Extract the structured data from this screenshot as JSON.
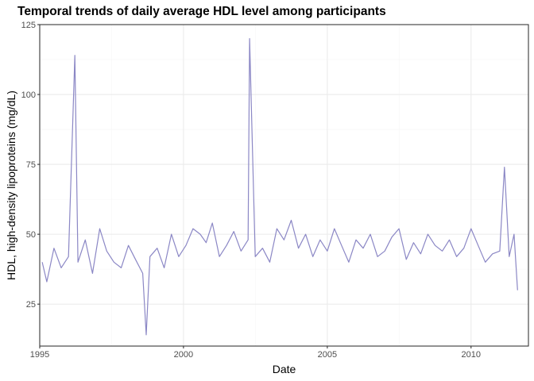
{
  "chart_data": {
    "type": "line",
    "title": "Temporal trends of daily average HDL level among participants",
    "xlabel": "Date",
    "ylabel": "HDL, high-density lipoproteins (mg/dL)",
    "xlim": [
      "1995-01-01",
      "2011-12-31"
    ],
    "ylim": [
      10,
      125
    ],
    "x_ticks": [
      "1995",
      "2000",
      "2005",
      "2010"
    ],
    "y_ticks": [
      "25",
      "50",
      "75",
      "100",
      "125"
    ],
    "grid": true,
    "series_color": "#8b87c5",
    "series": [
      {
        "x": [
          "1995-02-01",
          "1995-04-01",
          "1995-07-01",
          "1995-10-01",
          "1996-01-01",
          "1996-03-22",
          "1996-05-01",
          "1996-08-01",
          "1996-11-01",
          "1997-02-01",
          "1997-05-01",
          "1997-08-01",
          "1997-11-01",
          "1998-02-01",
          "1998-05-01",
          "1998-08-01",
          "1998-09-15",
          "1998-11-01",
          "1999-02-01",
          "1999-05-01",
          "1999-08-01",
          "1999-11-01",
          "2000-02-01",
          "2000-05-01",
          "2000-08-01",
          "2000-10-15",
          "2001-01-01",
          "2001-04-01",
          "2001-07-01",
          "2001-10-01",
          "2002-01-01",
          "2002-04-01",
          "2002-04-20",
          "2002-07-01",
          "2002-10-01",
          "2003-01-01",
          "2003-04-01",
          "2003-07-01",
          "2003-10-01",
          "2004-01-01",
          "2004-04-01",
          "2004-07-01",
          "2004-10-01",
          "2005-01-01",
          "2005-04-01",
          "2005-07-01",
          "2005-10-01",
          "2006-01-01",
          "2006-04-01",
          "2006-07-01",
          "2006-10-01",
          "2007-01-01",
          "2007-04-01",
          "2007-07-01",
          "2007-10-01",
          "2008-01-01",
          "2008-04-01",
          "2008-07-01",
          "2008-10-01",
          "2009-01-01",
          "2009-04-01",
          "2009-07-01",
          "2009-10-01",
          "2010-01-01",
          "2010-04-01",
          "2010-07-01",
          "2010-10-01",
          "2011-01-01",
          "2011-03-01",
          "2011-05-01",
          "2011-07-01",
          "2011-08-15"
        ],
        "y": [
          40,
          33,
          45,
          38,
          42,
          114,
          40,
          48,
          36,
          52,
          44,
          40,
          38,
          46,
          41,
          36,
          14,
          42,
          45,
          38,
          50,
          42,
          46,
          52,
          50,
          47,
          54,
          42,
          46,
          51,
          44,
          48,
          120,
          42,
          45,
          40,
          52,
          48,
          55,
          45,
          50,
          42,
          48,
          44,
          52,
          46,
          40,
          48,
          45,
          50,
          42,
          44,
          49,
          52,
          41,
          47,
          43,
          50,
          46,
          44,
          48,
          42,
          45,
          52,
          46,
          40,
          43,
          44,
          74,
          42,
          50,
          30
        ]
      }
    ]
  }
}
